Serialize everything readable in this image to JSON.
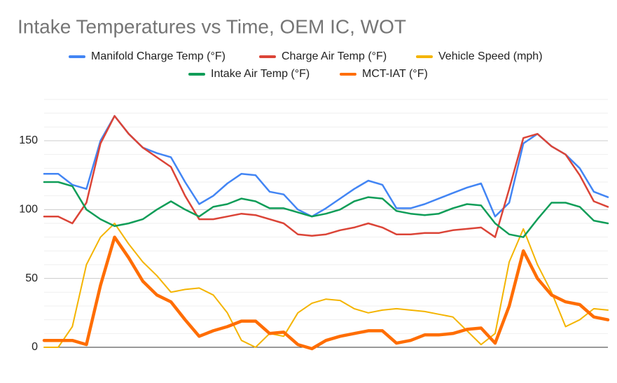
{
  "chart_data": {
    "type": "line",
    "title": "Intake Temperatures vs Time, OEM IC, WOT",
    "series": [
      {
        "name": "Manifold Charge Temp (°F)",
        "color": "#4285f4",
        "line_width": 2.5,
        "values": [
          126,
          126,
          118,
          115,
          150,
          168,
          155,
          145,
          141,
          138,
          120,
          104,
          110,
          119,
          126,
          125,
          113,
          111,
          100,
          95,
          101,
          108,
          115,
          121,
          118,
          101,
          101,
          104,
          108,
          112,
          116,
          119,
          95,
          105,
          148,
          155,
          146,
          140,
          130,
          113,
          109
        ]
      },
      {
        "name": "Charge Air Temp (°F)",
        "color": "#db4437",
        "line_width": 2.5,
        "values": [
          95,
          95,
          90,
          105,
          148,
          168,
          155,
          145,
          138,
          131,
          110,
          93,
          93,
          95,
          97,
          96,
          93,
          90,
          82,
          81,
          82,
          85,
          87,
          90,
          87,
          82,
          82,
          83,
          83,
          85,
          86,
          87,
          80,
          115,
          152,
          155,
          146,
          140,
          125,
          106,
          102
        ]
      },
      {
        "name": "Vehicle Speed (mph)",
        "color": "#f4b400",
        "line_width": 2,
        "values": [
          0,
          0,
          15,
          60,
          80,
          90,
          75,
          62,
          52,
          40,
          42,
          43,
          38,
          25,
          5,
          0,
          10,
          8,
          25,
          32,
          35,
          34,
          28,
          25,
          27,
          28,
          27,
          26,
          24,
          22,
          12,
          2,
          10,
          62,
          86,
          60,
          40,
          15,
          20,
          28,
          27
        ]
      },
      {
        "name": "Intake Air Temp (°F)",
        "color": "#0f9d58",
        "line_width": 2.5,
        "values": [
          120,
          120,
          117,
          100,
          93,
          88,
          90,
          93,
          100,
          106,
          100,
          95,
          102,
          104,
          108,
          106,
          101,
          101,
          98,
          95,
          97,
          100,
          106,
          109,
          108,
          99,
          97,
          96,
          97,
          101,
          104,
          103,
          90,
          82,
          80,
          93,
          105,
          105,
          102,
          92,
          90
        ]
      },
      {
        "name": "MCT-IAT (°F)",
        "color": "#ff6d01",
        "line_width": 4.5,
        "values": [
          5,
          5,
          5,
          2,
          45,
          80,
          65,
          48,
          38,
          33,
          20,
          8,
          12,
          15,
          19,
          19,
          10,
          11,
          2,
          -1,
          5,
          8,
          10,
          12,
          12,
          3,
          5,
          9,
          9,
          10,
          13,
          14,
          3,
          30,
          70,
          50,
          38,
          33,
          31,
          22,
          20
        ]
      }
    ],
    "ylim": [
      0,
      180
    ],
    "yticks": [
      0,
      50,
      100,
      150
    ],
    "minor_yticks": [
      10,
      20,
      30,
      40,
      60,
      70,
      80,
      90,
      110,
      120,
      130,
      140,
      160,
      170,
      180
    ],
    "grid": true
  }
}
